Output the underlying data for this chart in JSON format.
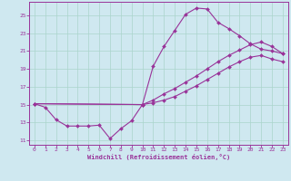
{
  "xlabel": "Windchill (Refroidissement éolien,°C)",
  "xlim": [
    -0.5,
    23.5
  ],
  "ylim": [
    10.5,
    26.5
  ],
  "xticks": [
    0,
    1,
    2,
    3,
    4,
    5,
    6,
    7,
    8,
    9,
    10,
    11,
    12,
    13,
    14,
    15,
    16,
    17,
    18,
    19,
    20,
    21,
    22,
    23
  ],
  "yticks": [
    11,
    13,
    15,
    17,
    19,
    21,
    23,
    25
  ],
  "bg_color": "#cfe8f0",
  "line_color": "#993399",
  "grid_color": "#aad4cc",
  "line1_x": [
    0,
    1,
    2,
    3,
    4,
    5,
    6,
    7,
    8,
    9,
    10,
    11,
    12,
    13,
    14,
    15,
    16,
    17,
    18,
    19,
    20,
    21,
    22,
    23
  ],
  "line1_y": [
    15.1,
    14.7,
    13.3,
    12.6,
    12.6,
    12.6,
    12.7,
    11.2,
    12.3,
    13.2,
    15.0,
    19.3,
    21.5,
    23.3,
    25.1,
    25.8,
    25.7,
    24.2,
    23.5,
    22.7,
    21.8,
    21.2,
    21.0,
    20.7
  ],
  "line2_x": [
    0,
    10,
    11,
    12,
    13,
    14,
    15,
    16,
    17,
    18,
    19,
    20,
    21,
    22,
    23
  ],
  "line2_y": [
    15.1,
    15.0,
    15.5,
    16.2,
    16.8,
    17.5,
    18.2,
    19.0,
    19.8,
    20.5,
    21.1,
    21.7,
    22.0,
    21.5,
    20.7
  ],
  "line3_x": [
    0,
    10,
    11,
    12,
    13,
    14,
    15,
    16,
    17,
    18,
    19,
    20,
    21,
    22,
    23
  ],
  "line3_y": [
    15.1,
    15.0,
    15.2,
    15.5,
    15.9,
    16.5,
    17.1,
    17.8,
    18.5,
    19.2,
    19.8,
    20.3,
    20.5,
    20.1,
    19.8
  ]
}
